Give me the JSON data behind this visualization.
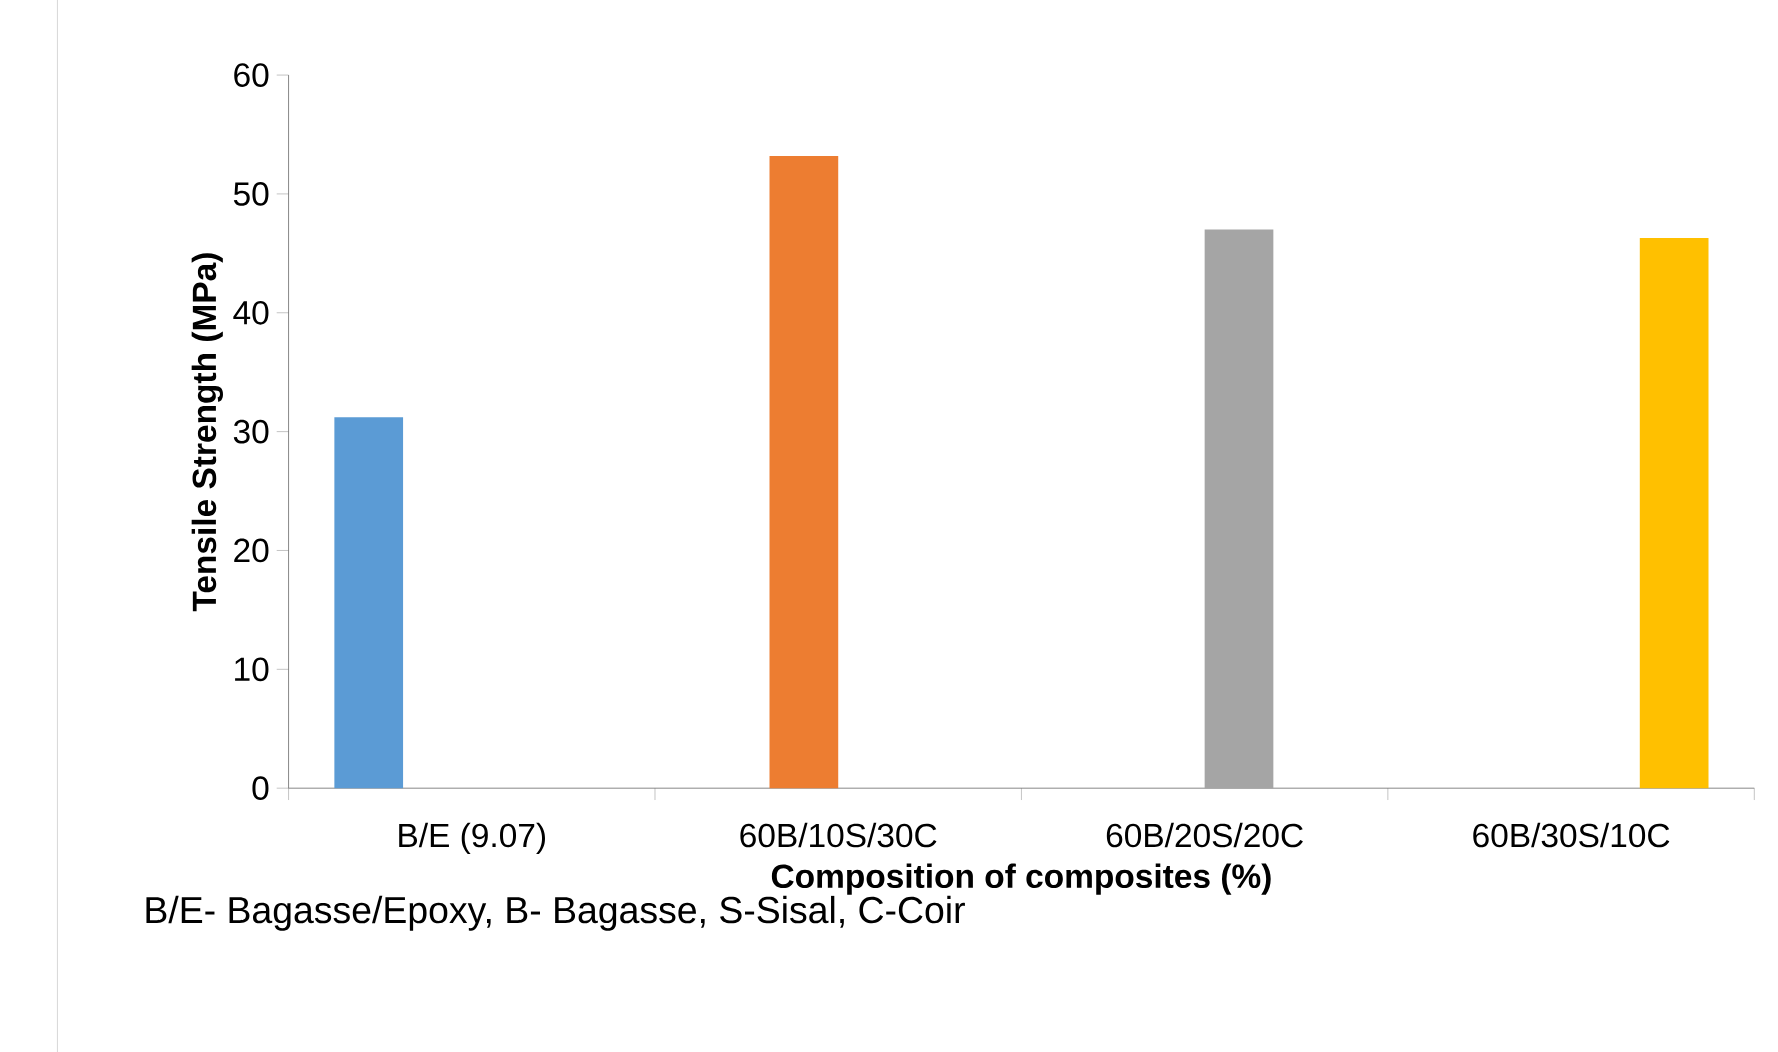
{
  "chart_data": {
    "type": "bar",
    "categories": [
      "B/E (9.07)",
      "60B/10S/30C",
      "60B/20S/20C",
      "60B/30S/10C"
    ],
    "series": [
      {
        "color": "#5b9bd5",
        "values": [
          31.2,
          null,
          null,
          null
        ]
      },
      {
        "color": "#ed7d31",
        "values": [
          null,
          53.2,
          null,
          null
        ]
      },
      {
        "color": "#a5a5a5",
        "values": [
          null,
          null,
          47.0,
          null
        ]
      },
      {
        "color": "#ffc000",
        "values": [
          null,
          null,
          null,
          46.3
        ]
      }
    ],
    "xlabel": "Composition of composites (%)",
    "ylabel": "Tensile Strength (MPa)",
    "ylim": [
      0,
      60
    ],
    "yticks": [
      0,
      10,
      20,
      30,
      40,
      50,
      60
    ],
    "annotations": [
      "B/E- Bagasse/Epoxy, B- Bagasse, S-Sisal, C-Coir"
    ],
    "grid": false
  }
}
